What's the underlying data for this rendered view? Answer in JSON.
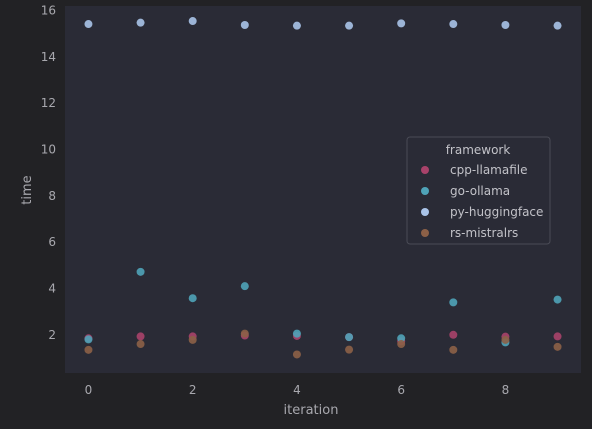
{
  "chart_data": {
    "type": "scatter",
    "xlabel": "iteration",
    "ylabel": "time",
    "x_ticks": [
      0,
      2,
      4,
      6,
      8
    ],
    "y_ticks": [
      2,
      4,
      6,
      8,
      10,
      12,
      14,
      16
    ],
    "xlim": [
      -0.45,
      9.45
    ],
    "ylim": [
      0.35,
      16.2
    ],
    "grid": false,
    "legend": {
      "title": "framework",
      "placement": "center-right"
    },
    "x": [
      0,
      1,
      2,
      3,
      4,
      5,
      6,
      7,
      8,
      9
    ],
    "series": [
      {
        "name": "cpp-llamafile",
        "color": "#a8426a",
        "values": [
          1.85,
          1.93,
          1.93,
          1.97,
          1.95,
          1.9,
          1.72,
          2.0,
          1.92,
          1.93
        ]
      },
      {
        "name": "go-ollama",
        "color": "#4fa3b8",
        "values": [
          1.8,
          4.72,
          3.58,
          4.1,
          2.05,
          1.9,
          1.85,
          3.4,
          1.67,
          3.52
        ]
      },
      {
        "name": "py-huggingface",
        "color": "#a9c3e8",
        "values": [
          15.42,
          15.48,
          15.55,
          15.38,
          15.35,
          15.35,
          15.45,
          15.42,
          15.38,
          15.35
        ]
      },
      {
        "name": "rs-mistralrs",
        "color": "#8c6047",
        "values": [
          1.35,
          1.6,
          1.78,
          2.05,
          1.15,
          1.36,
          1.6,
          1.35,
          1.78,
          1.48
        ]
      }
    ]
  }
}
